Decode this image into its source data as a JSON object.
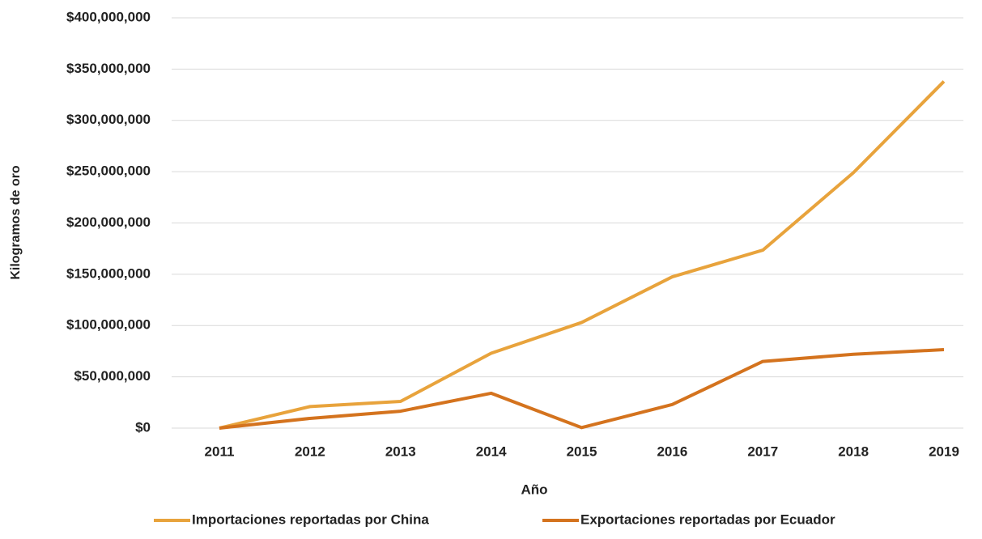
{
  "chart_data": {
    "type": "line",
    "x_label": "Año",
    "y_label": "Kilogramos de oro",
    "categories": [
      "2011",
      "2012",
      "2013",
      "2014",
      "2015",
      "2016",
      "2017",
      "2018",
      "2019"
    ],
    "series": [
      {
        "name": "Importaciones reportadas por China",
        "color": "#e8a33c",
        "values": [
          0,
          21000000,
          26000000,
          73000000,
          103000000,
          147500000,
          173500000,
          249000000,
          338000000
        ]
      },
      {
        "name": "Exportaciones reportadas por Ecuador",
        "color": "#d4731e",
        "values": [
          0,
          9500000,
          16500000,
          34000000,
          500000,
          23000000,
          65000000,
          72000000,
          76500000
        ]
      }
    ],
    "ylim": [
      0,
      400000000
    ],
    "yticks": [
      {
        "value": 0,
        "label": "$0"
      },
      {
        "value": 50000000,
        "label": "$50,000,000"
      },
      {
        "value": 100000000,
        "label": "$100,000,000"
      },
      {
        "value": 150000000,
        "label": "$150,000,000"
      },
      {
        "value": 200000000,
        "label": "$200,000,000"
      },
      {
        "value": 250000000,
        "label": "$250,000,000"
      },
      {
        "value": 300000000,
        "label": "$300,000,000"
      },
      {
        "value": 350000000,
        "label": "$350,000,000"
      },
      {
        "value": 400000000,
        "label": "$400,000,000"
      }
    ],
    "grid": true,
    "legend": "bottom"
  }
}
